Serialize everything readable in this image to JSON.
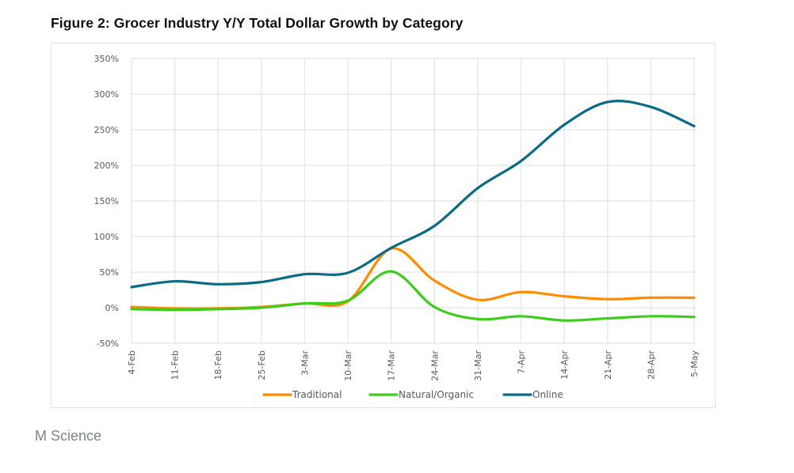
{
  "figure": {
    "title": "Figure 2: Grocer Industry Y/Y Total Dollar Growth by Category",
    "source": "M Science"
  },
  "chart_data": {
    "type": "line",
    "title": "Figure 2: Grocer Industry Y/Y Total Dollar Growth by Category",
    "xlabel": "",
    "ylabel": "",
    "categories": [
      "4-Feb",
      "11-Feb",
      "18-Feb",
      "25-Feb",
      "3-Mar",
      "10-Mar",
      "17-Mar",
      "24-Mar",
      "31-Mar",
      "7-Apr",
      "14-Apr",
      "21-Apr",
      "28-Apr",
      "5-May"
    ],
    "yticks": [
      "-50%",
      "0%",
      "50%",
      "100%",
      "150%",
      "200%",
      "250%",
      "300%",
      "350%"
    ],
    "ytick_values": [
      -50,
      0,
      50,
      100,
      150,
      200,
      250,
      300,
      350
    ],
    "ylim": [
      -50,
      350
    ],
    "y_unit": "%",
    "grid": true,
    "smooth": true,
    "legend_position": "bottom",
    "series": [
      {
        "name": "Traditional",
        "color": "#ff8c00",
        "values": [
          1,
          -1,
          -1,
          1,
          6,
          9,
          83,
          38,
          11,
          22,
          16,
          12,
          14,
          14
        ]
      },
      {
        "name": "Natural/Organic",
        "color": "#3dcc1a",
        "values": [
          -2,
          -3,
          -2,
          0,
          6,
          10,
          51,
          1,
          -16,
          -12,
          -18,
          -15,
          -12,
          -13
        ]
      },
      {
        "name": "Online",
        "color": "#0b6a86",
        "values": [
          29,
          37,
          33,
          36,
          47,
          49,
          84,
          115,
          168,
          206,
          257,
          289,
          282,
          255
        ]
      }
    ]
  }
}
